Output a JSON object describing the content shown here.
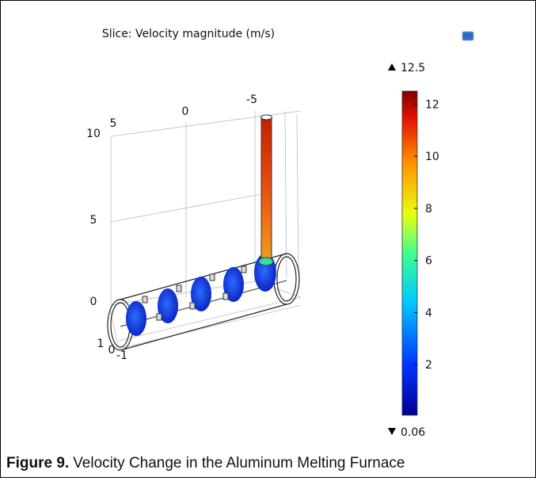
{
  "plot": {
    "title": "Slice: Velocity magnitude (m/s)",
    "x_axis_labels": [
      "5",
      "0",
      "-5"
    ],
    "z_axis_labels": [
      "10",
      "5",
      "0"
    ],
    "y_axis_labels": [
      "1",
      "0",
      "-1"
    ]
  },
  "colorbar": {
    "max": 12.5,
    "min": 0.06,
    "ticks": [
      2,
      4,
      6,
      8,
      10,
      12
    ]
  },
  "caption": {
    "label": "Figure 9.",
    "text": "Velocity Change in the Aluminum Melting Furnace"
  }
}
